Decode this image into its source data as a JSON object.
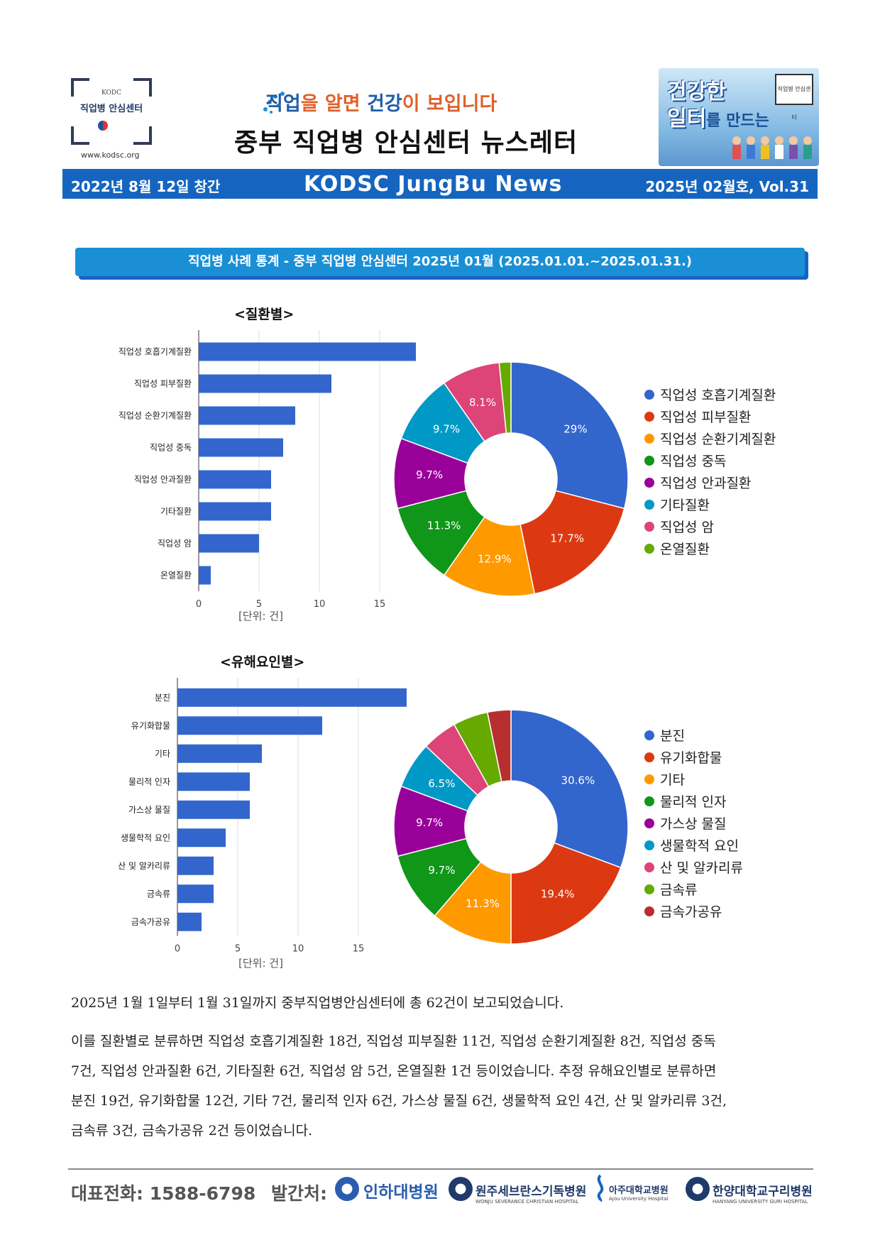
{
  "header": {
    "logo_org": "KODC",
    "logo_name": "직업병 안심센터",
    "logo_site": "www.kodsc.org",
    "slogan_a": "직업",
    "slogan_b": "을 알면 ",
    "slogan_c": "건강",
    "slogan_d": "이 보입니다",
    "title": "중부 직업병 안심센터 뉴스레터",
    "badge_line1": "건강한",
    "badge_line2": "일터",
    "badge_line2_suffix": "를 만드는",
    "badge_mini": "직업병 안심센터"
  },
  "banner": {
    "left": "2022년 8월 12일 창간",
    "center": "KODSC JungBu News",
    "right": "2025년 02월호, Vol.31"
  },
  "section_title": "직업병 사례 통계 - 중부 직업병 안심센터   2025년 01월 (2025.01.01.~2025.01.31.)",
  "chart_data": [
    {
      "type": "bar",
      "title": "<질환별>",
      "categories": [
        "직업성 호흡기계질환",
        "직업성 피부질환",
        "직업성 순환기계질환",
        "직업성 중독",
        "직업성 안과질환",
        "기타질환",
        "직업성 암",
        "온열질환"
      ],
      "values": [
        18,
        11,
        8,
        7,
        6,
        6,
        5,
        1
      ],
      "xlim": [
        0,
        20
      ],
      "xticks": [
        0,
        5,
        10,
        15
      ],
      "unit": "[단위: 건]",
      "orientation": "horizontal",
      "grid": true
    },
    {
      "type": "pie",
      "donut": true,
      "categories": [
        "직업성 호흡기계질환",
        "직업성 피부질환",
        "직업성 순환기계질환",
        "직업성 중독",
        "직업성 안과질환",
        "기타질환",
        "직업성 암",
        "온열질환"
      ],
      "values": [
        18,
        11,
        8,
        7,
        6,
        6,
        5,
        1
      ],
      "labels": [
        "29%",
        "17.7%",
        "12.9%",
        "11.3%",
        "9.7%",
        "9.7%",
        "8.1%",
        ""
      ],
      "colors": [
        "#3366cc",
        "#dc3912",
        "#ff9900",
        "#109618",
        "#990099",
        "#0099c6",
        "#dd4477",
        "#66aa00"
      ],
      "legend": "right"
    },
    {
      "type": "bar",
      "title": "<유해요인별>",
      "categories": [
        "분진",
        "유기화합물",
        "기타",
        "물리적 인자",
        "가스상 물질",
        "생물학적 요인",
        "산 및 알카리류",
        "금속류",
        "금속가공유"
      ],
      "values": [
        19,
        12,
        7,
        6,
        6,
        4,
        3,
        3,
        2
      ],
      "xlim": [
        0,
        20
      ],
      "xticks": [
        0,
        5,
        10,
        15
      ],
      "unit": "[단위: 건]",
      "orientation": "horizontal",
      "grid": true
    },
    {
      "type": "pie",
      "donut": true,
      "categories": [
        "분진",
        "유기화합물",
        "기타",
        "물리적 인자",
        "가스상 물질",
        "생물학적 요인",
        "산 및 알카리류",
        "금속류",
        "금속가공유"
      ],
      "values": [
        19,
        12,
        7,
        6,
        6,
        4,
        3,
        3,
        2
      ],
      "labels": [
        "30.6%",
        "19.4%",
        "11.3%",
        "9.7%",
        "9.7%",
        "6.5%",
        "",
        "",
        ""
      ],
      "colors": [
        "#3366cc",
        "#dc3912",
        "#ff9900",
        "#109618",
        "#990099",
        "#0099c6",
        "#dd4477",
        "#66aa00",
        "#b82e2e"
      ],
      "legend": "right"
    }
  ],
  "text": {
    "p1": "2025년 1월 1일부터 1월 31일까지 중부직업병안심센터에 총 62건이 보고되었습니다.",
    "p2_l1": "이를 질환별로 분류하면 직업성 호흡기계질환 18건, 직업성 피부질환 11건, 직업성 순환기계질환 8건, 직업성 중독",
    "p2_l2": "7건, 직업성 안과질환 6건, 기타질환 6건, 직업성 암 5건, 온열질환 1건 등이었습니다. 추정 유해요인별로 분류하면",
    "p2_l3": "분진 19건, 유기화합물 12건, 기타 7건, 물리적 인자 6건, 가스상 물질 6건, 생물학적 요인 4건, 산 및 알카리류 3건,",
    "p2_l4": "금속류 3건, 금속가공유 2건 등이었습니다."
  },
  "footer": {
    "phone": "대표전화:  1588-6798",
    "publisher": "발간처:",
    "h1": "인하대병원",
    "h2": "원주세브란스기독병원",
    "h2_sub": "WONJU SEVERANCE CHRISTIAN HOSPITAL",
    "h3": "아주대학교병원",
    "h3_sub": "Ajou University Hospital",
    "h4": "한양대학교구리병원",
    "h4_sub": "HANYANG UNIVERSITY GURI HOSPITAL"
  }
}
